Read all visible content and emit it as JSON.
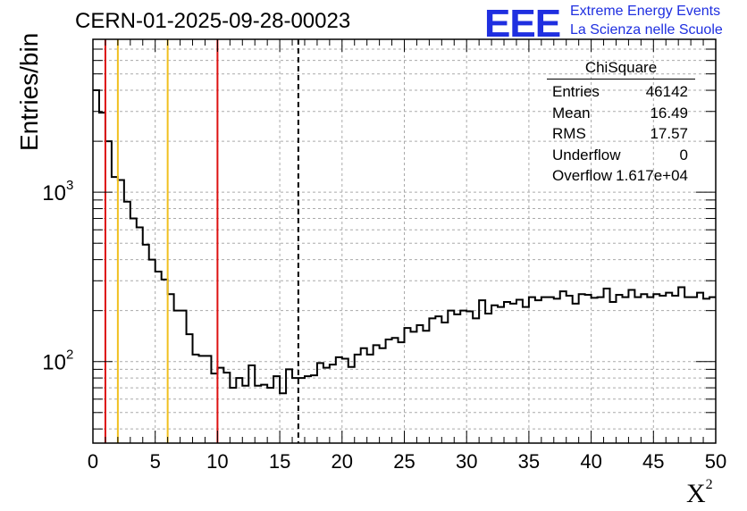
{
  "header": {
    "title": "CERN-01-2025-09-28-00023",
    "logo_text": "EEE",
    "logo_line1": "Extreme Energy Events",
    "logo_line2": "La Scienza nelle Scuole"
  },
  "colors": {
    "red_lines": "#dd1111",
    "orange_lines": "#f0c020",
    "logo": "#1f2fe0"
  },
  "stats_box": {
    "name": "ChiSquare",
    "rows": [
      {
        "key": "Entries",
        "value": "46142"
      },
      {
        "key": "Mean",
        "value": "16.49"
      },
      {
        "key": "RMS",
        "value": "17.57"
      },
      {
        "key": "Underflow",
        "value": "0"
      },
      {
        "key": "Overflow",
        "value": "1.617e+04"
      }
    ]
  },
  "chart_data": {
    "type": "histogram",
    "ylabel": "Entries/bin",
    "xlabel": "X",
    "xlabel_superscript": "2",
    "xlim": [
      0,
      50
    ],
    "ylim": [
      33,
      8000
    ],
    "y_scale": "log",
    "grid": true,
    "x_ticks": [
      "0",
      "5",
      "10",
      "15",
      "20",
      "25",
      "30",
      "35",
      "40",
      "45",
      "50"
    ],
    "y_ticks": [
      {
        "mantissa": "10",
        "exp": "2",
        "value": 100
      },
      {
        "mantissa": "10",
        "exp": "3",
        "value": 1000
      }
    ],
    "bin_width": 0.5,
    "bin_start": 0,
    "values": [
      4000,
      2950,
      2000,
      1230,
      1180,
      880,
      700,
      620,
      490,
      400,
      340,
      305,
      250,
      200,
      200,
      145,
      110,
      108,
      108,
      85,
      92,
      86,
      70,
      80,
      72,
      95,
      72,
      73,
      70,
      82,
      65,
      90,
      80,
      80,
      82,
      83,
      98,
      92,
      96,
      106,
      104,
      93,
      110,
      120,
      110,
      125,
      120,
      135,
      138,
      130,
      158,
      150,
      164,
      152,
      180,
      185,
      170,
      200,
      190,
      200,
      198,
      180,
      230,
      192,
      215,
      210,
      225,
      220,
      232,
      210,
      240,
      230,
      240,
      240,
      235,
      260,
      245,
      220,
      250,
      248,
      238,
      240,
      270,
      225,
      248,
      240,
      265,
      240,
      250,
      240,
      250,
      245,
      255,
      245,
      275,
      240,
      240,
      255,
      235,
      240
    ],
    "vertical_lines": [
      {
        "x": 1,
        "color": "red",
        "style": "solid"
      },
      {
        "x": 2,
        "color": "orange",
        "style": "solid"
      },
      {
        "x": 6,
        "color": "orange",
        "style": "solid"
      },
      {
        "x": 10,
        "color": "red",
        "style": "solid"
      },
      {
        "x": 16.49,
        "color": "black",
        "style": "dashed"
      }
    ]
  }
}
